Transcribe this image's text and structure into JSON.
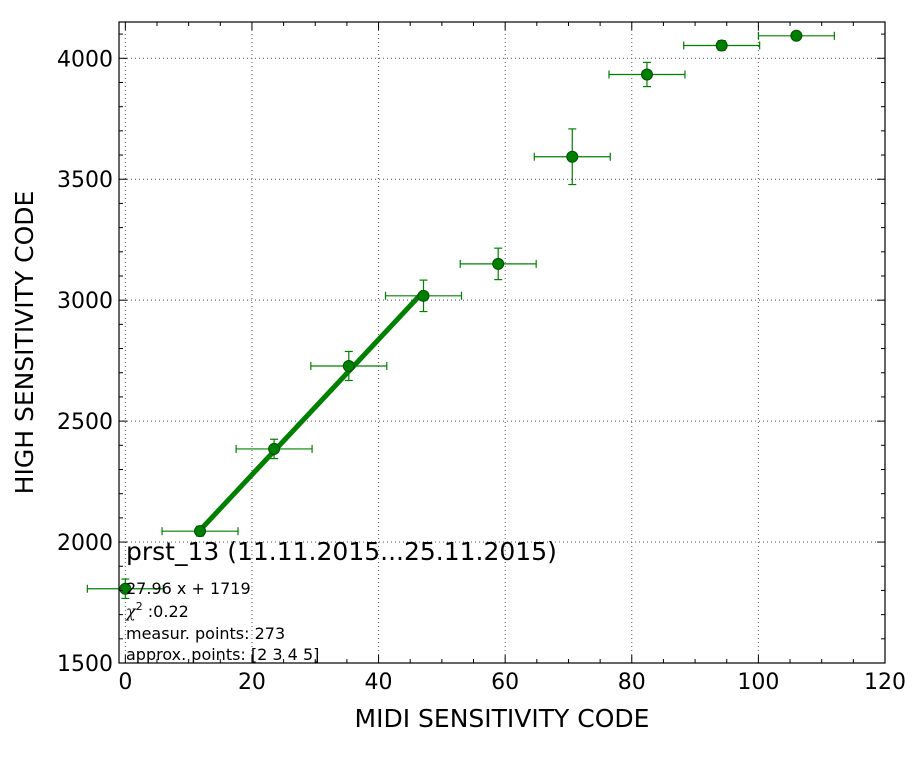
{
  "chart_data": {
    "type": "scatter",
    "title": "prst_13 (11.11.2015...25.11.2015)",
    "xlabel": "MIDI SENSITIVITY CODE",
    "ylabel": "HIGH SENSITIVITY CODE",
    "xlim": [
      -1,
      120
    ],
    "ylim": [
      1500,
      4150
    ],
    "xticks": [
      0,
      20,
      40,
      60,
      80,
      100,
      120
    ],
    "yticks": [
      1500,
      2000,
      2500,
      3000,
      3500,
      4000
    ],
    "grid": true,
    "series": [
      {
        "points": [
          {
            "x": 0,
            "y": 1807,
            "xerr": 6,
            "yerr": 40
          },
          {
            "x": 11.8,
            "y": 2045,
            "xerr": 6,
            "yerr": 20
          },
          {
            "x": 23.5,
            "y": 2385,
            "xerr": 6,
            "yerr": 40
          },
          {
            "x": 35.3,
            "y": 2728,
            "xerr": 6,
            "yerr": 60
          },
          {
            "x": 47.1,
            "y": 3018,
            "xerr": 6,
            "yerr": 65
          },
          {
            "x": 58.9,
            "y": 3150,
            "xerr": 6,
            "yerr": 65
          },
          {
            "x": 70.6,
            "y": 3593,
            "xerr": 6,
            "yerr": 115
          },
          {
            "x": 82.4,
            "y": 3933,
            "xerr": 6,
            "yerr": 50
          },
          {
            "x": 94.2,
            "y": 4053,
            "xerr": 6,
            "yerr": 20
          },
          {
            "x": 106.0,
            "y": 4093,
            "xerr": 6,
            "yerr": 10
          }
        ]
      }
    ],
    "fit": {
      "slope": 27.96,
      "intercept": 1719,
      "x_range": [
        11.8,
        47.1
      ],
      "color": "#008000"
    },
    "annotations": {
      "equation": "27.96 x + 1719",
      "chi_label": "χ",
      "chi_sup": "2",
      "chi_value": " :0.22",
      "measur_points": "measur. points: 273",
      "approx_points": "approx. points: [2 3 4 5]"
    },
    "colors": {
      "marker": "#008000",
      "marker_edge": "#004d00",
      "errorbar": "#008000",
      "grid": "#555555"
    }
  }
}
